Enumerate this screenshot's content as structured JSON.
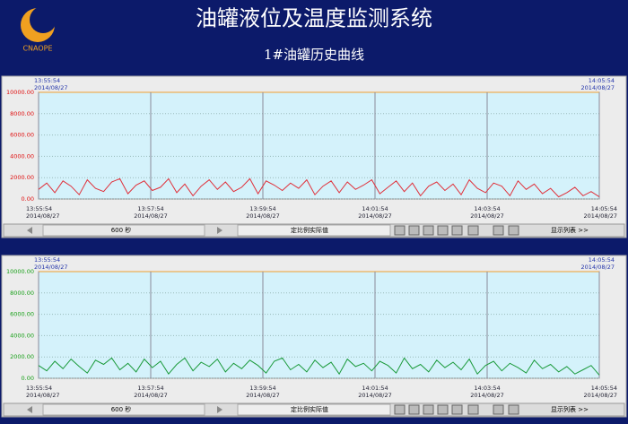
{
  "header": {
    "title": "油罐液位及温度监测系统",
    "subtitle": "1#油罐历史曲线",
    "logo": "CNAOPE"
  },
  "toolbar": {
    "span": "600 秒",
    "mode": "定比例实际值",
    "list": "显示列表 >>"
  },
  "chart_data": [
    {
      "type": "line",
      "color": "#e0303a",
      "label_color": "#e01010",
      "grid": true,
      "range_start": {
        "time": "13:55:54",
        "date": "2014/08/27"
      },
      "range_end": {
        "time": "14:05:54",
        "date": "2014/08/27"
      },
      "xlim": [
        0,
        600
      ],
      "ylim": [
        0,
        10000
      ],
      "xticks": [
        {
          "value": 0,
          "label": "13:55:54"
        },
        {
          "value": 120,
          "label": "13:57:54"
        },
        {
          "value": 240,
          "label": "13:59:54"
        },
        {
          "value": 360,
          "label": "14:01:54"
        },
        {
          "value": 480,
          "label": "14:03:54"
        },
        {
          "value": 600,
          "label": "14:05:54"
        }
      ],
      "xtick_date": "2014/08/27",
      "yticks": [
        {
          "value": 0,
          "label": "0.00"
        },
        {
          "value": 2000,
          "label": "2000.00"
        },
        {
          "value": 4000,
          "label": "4000.00"
        },
        {
          "value": 6000,
          "label": "6000.00"
        },
        {
          "value": 8000,
          "label": "8000.00"
        },
        {
          "value": 10000,
          "label": "10000.00"
        }
      ],
      "values": [
        900,
        1500,
        600,
        1700,
        1200,
        400,
        1800,
        1000,
        700,
        1600,
        1900,
        500,
        1300,
        1700,
        800,
        1100,
        1900,
        600,
        1400,
        300,
        1200,
        1800,
        900,
        1600,
        700,
        1100,
        1900,
        500,
        1700,
        1300,
        800,
        1500,
        1000,
        1800,
        400,
        1200,
        1700,
        600,
        1600,
        900,
        1300,
        1800,
        500,
        1100,
        1700,
        700,
        1500,
        300,
        1200,
        1600,
        800,
        1400,
        400,
        1800,
        1000,
        600,
        1500,
        1200,
        300,
        1700,
        900,
        1400,
        500,
        1000,
        200,
        600,
        1100,
        300,
        700,
        200
      ]
    },
    {
      "type": "line",
      "color": "#1a9a3a",
      "label_color": "#18a018",
      "grid": true,
      "range_start": {
        "time": "13:55:54",
        "date": "2014/08/27"
      },
      "range_end": {
        "time": "14:05:54",
        "date": "2014/08/27"
      },
      "xlim": [
        0,
        600
      ],
      "ylim": [
        0,
        10000
      ],
      "xticks": [
        {
          "value": 0,
          "label": "13:55:54"
        },
        {
          "value": 120,
          "label": "13:57:54"
        },
        {
          "value": 240,
          "label": "13:59:54"
        },
        {
          "value": 360,
          "label": "14:01:54"
        },
        {
          "value": 480,
          "label": "14:03:54"
        },
        {
          "value": 600,
          "label": "14:05:54"
        }
      ],
      "xtick_date": "2014/08/27",
      "yticks": [
        {
          "value": 0,
          "label": "0.00"
        },
        {
          "value": 2000,
          "label": "2000.00"
        },
        {
          "value": 4000,
          "label": "4000.00"
        },
        {
          "value": 6000,
          "label": "6000.00"
        },
        {
          "value": 8000,
          "label": "8000.00"
        },
        {
          "value": 10000,
          "label": "10000.00"
        }
      ],
      "values": [
        1200,
        700,
        1600,
        900,
        1800,
        1100,
        500,
        1700,
        1300,
        1900,
        800,
        1400,
        600,
        1800,
        1000,
        1600,
        400,
        1300,
        1900,
        700,
        1500,
        1100,
        1800,
        600,
        1400,
        900,
        1700,
        1200,
        500,
        1600,
        1900,
        800,
        1300,
        600,
        1700,
        1000,
        1500,
        400,
        1800,
        1100,
        1400,
        700,
        1600,
        1200,
        500,
        1900,
        900,
        1300,
        600,
        1700,
        1000,
        1500,
        800,
        1800,
        400,
        1200,
        1600,
        700,
        1400,
        1000,
        500,
        1700,
        900,
        1300,
        600,
        1100,
        400,
        800,
        1200,
        300
      ]
    }
  ]
}
